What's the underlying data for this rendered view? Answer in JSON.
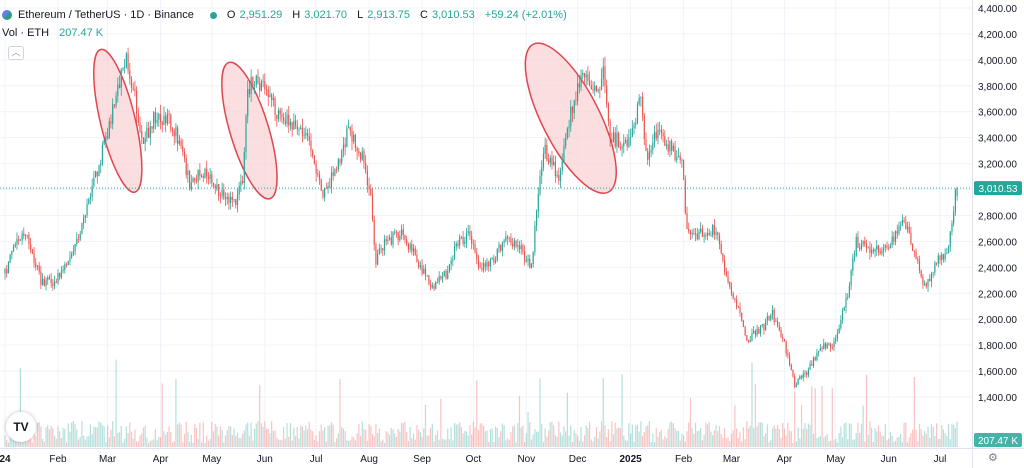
{
  "header": {
    "title": "Ethereum / TetherUS · 1D · Binance",
    "ohlc": [
      {
        "key": "O",
        "value": "2,951.29"
      },
      {
        "key": "H",
        "value": "3,021.70"
      },
      {
        "key": "L",
        "value": "2,913.75"
      },
      {
        "key": "C",
        "value": "3,010.53"
      }
    ],
    "change": "+59.24 (+2.01%)",
    "volume_label": "Vol · ETH",
    "volume_value": "207.47 K",
    "collapse_icon": "chevron-up-icon"
  },
  "colors": {
    "up": "#26a69a",
    "down": "#ef5350",
    "highlight_fill": "#f8c9cc",
    "highlight_stroke": "#e0464e",
    "grid": "#f0f3fa",
    "axis_text": "#131722"
  },
  "chart_data": {
    "type": "candlestick",
    "interval": "1D",
    "ylim": [
      1300,
      4400
    ],
    "y_ticks": [
      {
        "value": 4400,
        "label": "4,400.00"
      },
      {
        "value": 4200,
        "label": "4,200.00"
      },
      {
        "value": 4000,
        "label": "4,000.00"
      },
      {
        "value": 3800,
        "label": "3,800.00"
      },
      {
        "value": 3600,
        "label": "3,600.00"
      },
      {
        "value": 3400,
        "label": "3,400.00"
      },
      {
        "value": 3200,
        "label": "3,200.00"
      },
      {
        "value": 3000,
        "label": "3,000.00"
      },
      {
        "value": 2800,
        "label": "2,800.00"
      },
      {
        "value": 2600,
        "label": "2,600.00"
      },
      {
        "value": 2400,
        "label": "2,400.00"
      },
      {
        "value": 2200,
        "label": "2,200.00"
      },
      {
        "value": 2000,
        "label": "2,000.00"
      },
      {
        "value": 1800,
        "label": "1,800.00"
      },
      {
        "value": 1600,
        "label": "1,600.00"
      },
      {
        "value": 1400,
        "label": "1,400.00"
      }
    ],
    "x_ticks": [
      {
        "date": "2024-01-01",
        "label": "24"
      },
      {
        "date": "2024-02-01",
        "label": "Feb"
      },
      {
        "date": "2024-03-01",
        "label": "Mar"
      },
      {
        "date": "2024-04-01",
        "label": "Apr"
      },
      {
        "date": "2024-05-01",
        "label": "May"
      },
      {
        "date": "2024-06-01",
        "label": "Jun"
      },
      {
        "date": "2024-07-01",
        "label": "Jul"
      },
      {
        "date": "2024-08-01",
        "label": "Aug"
      },
      {
        "date": "2024-09-01",
        "label": "Sep"
      },
      {
        "date": "2024-10-01",
        "label": "Oct"
      },
      {
        "date": "2024-11-01",
        "label": "Nov"
      },
      {
        "date": "2024-12-01",
        "label": "Dec"
      },
      {
        "date": "2025-01-01",
        "label": "2025"
      },
      {
        "date": "2025-02-01",
        "label": "Feb"
      },
      {
        "date": "2025-03-01",
        "label": "Mar"
      },
      {
        "date": "2025-04-01",
        "label": "Apr"
      },
      {
        "date": "2025-05-01",
        "label": "May"
      },
      {
        "date": "2025-06-01",
        "label": "Jun"
      },
      {
        "date": "2025-07-01",
        "label": "Jul"
      }
    ],
    "last_price": {
      "value": 3010.53,
      "label": "3,010.53"
    },
    "last_volume": {
      "label": "207.47 K"
    },
    "close_path": [
      {
        "date": "2024-01-01",
        "close": 2350
      },
      {
        "date": "2024-01-08",
        "close": 2600
      },
      {
        "date": "2024-01-13",
        "close": 2680
      },
      {
        "date": "2024-01-22",
        "close": 2300
      },
      {
        "date": "2024-01-29",
        "close": 2280
      },
      {
        "date": "2024-02-08",
        "close": 2450
      },
      {
        "date": "2024-02-19",
        "close": 2900
      },
      {
        "date": "2024-02-28",
        "close": 3350
      },
      {
        "date": "2024-03-05",
        "close": 3650
      },
      {
        "date": "2024-03-12",
        "close": 4050
      },
      {
        "date": "2024-03-17",
        "close": 3700
      },
      {
        "date": "2024-03-22",
        "close": 3350
      },
      {
        "date": "2024-03-28",
        "close": 3550
      },
      {
        "date": "2024-04-05",
        "close": 3550
      },
      {
        "date": "2024-04-11",
        "close": 3400
      },
      {
        "date": "2024-04-18",
        "close": 3050
      },
      {
        "date": "2024-04-28",
        "close": 3150
      },
      {
        "date": "2024-05-05",
        "close": 3000
      },
      {
        "date": "2024-05-15",
        "close": 2900
      },
      {
        "date": "2024-05-19",
        "close": 3050
      },
      {
        "date": "2024-05-22",
        "close": 3780
      },
      {
        "date": "2024-05-27",
        "close": 3850
      },
      {
        "date": "2024-06-04",
        "close": 3750
      },
      {
        "date": "2024-06-08",
        "close": 3600
      },
      {
        "date": "2024-06-17",
        "close": 3500
      },
      {
        "date": "2024-06-27",
        "close": 3400
      },
      {
        "date": "2024-07-05",
        "close": 2950
      },
      {
        "date": "2024-07-12",
        "close": 3150
      },
      {
        "date": "2024-07-20",
        "close": 3450
      },
      {
        "date": "2024-07-28",
        "close": 3250
      },
      {
        "date": "2024-08-02",
        "close": 2950
      },
      {
        "date": "2024-08-05",
        "close": 2450
      },
      {
        "date": "2024-08-10",
        "close": 2600
      },
      {
        "date": "2024-08-20",
        "close": 2650
      },
      {
        "date": "2024-08-28",
        "close": 2500
      },
      {
        "date": "2024-09-06",
        "close": 2250
      },
      {
        "date": "2024-09-15",
        "close": 2350
      },
      {
        "date": "2024-09-22",
        "close": 2600
      },
      {
        "date": "2024-09-28",
        "close": 2650
      },
      {
        "date": "2024-10-05",
        "close": 2400
      },
      {
        "date": "2024-10-13",
        "close": 2450
      },
      {
        "date": "2024-10-20",
        "close": 2650
      },
      {
        "date": "2024-10-28",
        "close": 2550
      },
      {
        "date": "2024-11-04",
        "close": 2400
      },
      {
        "date": "2024-11-09",
        "close": 3100
      },
      {
        "date": "2024-11-12",
        "close": 3300
      },
      {
        "date": "2024-11-20",
        "close": 3100
      },
      {
        "date": "2024-11-27",
        "close": 3600
      },
      {
        "date": "2024-12-06",
        "close": 3950
      },
      {
        "date": "2024-12-10",
        "close": 3700
      },
      {
        "date": "2024-12-16",
        "close": 3900
      },
      {
        "date": "2024-12-20",
        "close": 3400
      },
      {
        "date": "2024-12-30",
        "close": 3350
      },
      {
        "date": "2025-01-07",
        "close": 3700
      },
      {
        "date": "2025-01-10",
        "close": 3250
      },
      {
        "date": "2025-01-17",
        "close": 3450
      },
      {
        "date": "2025-01-25",
        "close": 3300
      },
      {
        "date": "2025-01-31",
        "close": 3200
      },
      {
        "date": "2025-02-03",
        "close": 2700
      },
      {
        "date": "2025-02-10",
        "close": 2650
      },
      {
        "date": "2025-02-20",
        "close": 2700
      },
      {
        "date": "2025-02-25",
        "close": 2400
      },
      {
        "date": "2025-03-03",
        "close": 2150
      },
      {
        "date": "2025-03-10",
        "close": 1850
      },
      {
        "date": "2025-03-20",
        "close": 1950
      },
      {
        "date": "2025-03-25",
        "close": 2050
      },
      {
        "date": "2025-04-01",
        "close": 1800
      },
      {
        "date": "2025-04-07",
        "close": 1500
      },
      {
        "date": "2025-04-15",
        "close": 1600
      },
      {
        "date": "2025-04-22",
        "close": 1800
      },
      {
        "date": "2025-04-30",
        "close": 1800
      },
      {
        "date": "2025-05-08",
        "close": 2200
      },
      {
        "date": "2025-05-13",
        "close": 2600
      },
      {
        "date": "2025-05-20",
        "close": 2550
      },
      {
        "date": "2025-05-31",
        "close": 2550
      },
      {
        "date": "2025-06-10",
        "close": 2750
      },
      {
        "date": "2025-06-17",
        "close": 2500
      },
      {
        "date": "2025-06-22",
        "close": 2250
      },
      {
        "date": "2025-06-30",
        "close": 2450
      },
      {
        "date": "2025-07-06",
        "close": 2550
      },
      {
        "date": "2025-07-10",
        "close": 2950
      },
      {
        "date": "2025-07-11",
        "close": 3010.53
      }
    ],
    "highlight_zones": [
      {
        "start": "2024-02-26",
        "end": "2024-03-17",
        "low": 2980,
        "high": 4080
      },
      {
        "start": "2024-05-11",
        "end": "2024-06-04",
        "low": 2930,
        "high": 3980
      },
      {
        "start": "2024-11-05",
        "end": "2024-12-19",
        "low": 2980,
        "high": 4120
      }
    ]
  }
}
